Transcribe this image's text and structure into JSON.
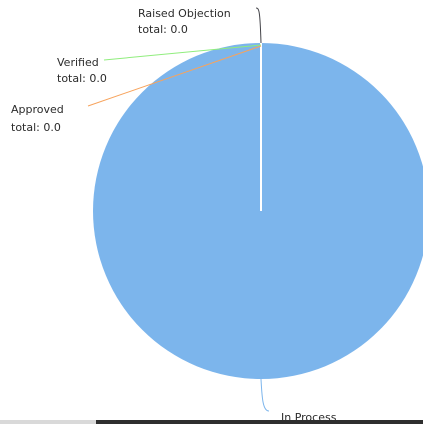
{
  "chart_data": {
    "type": "pie",
    "title": "",
    "slices": [
      {
        "label": "In Process",
        "value": 1,
        "value_label": "",
        "color": "#7cb5ec",
        "leader_color": "#7cb5ec"
      },
      {
        "label": "Raised Objection",
        "value": 0.0,
        "value_label": "total: 0.0",
        "color": "#434348",
        "leader_color": "#434348"
      },
      {
        "label": "Verified",
        "value": 0.0,
        "value_label": "total: 0.0",
        "color": "#90ed7d",
        "leader_color": "#90ed7d"
      },
      {
        "label": "Approved",
        "value": 0.0,
        "value_label": "total: 0.0",
        "color": "#f7a35c",
        "leader_color": "#f7a35c"
      }
    ]
  },
  "colors": {
    "background": "#ffffff",
    "pie_fill": "#7cb5ec",
    "separator": "#ffffff"
  }
}
